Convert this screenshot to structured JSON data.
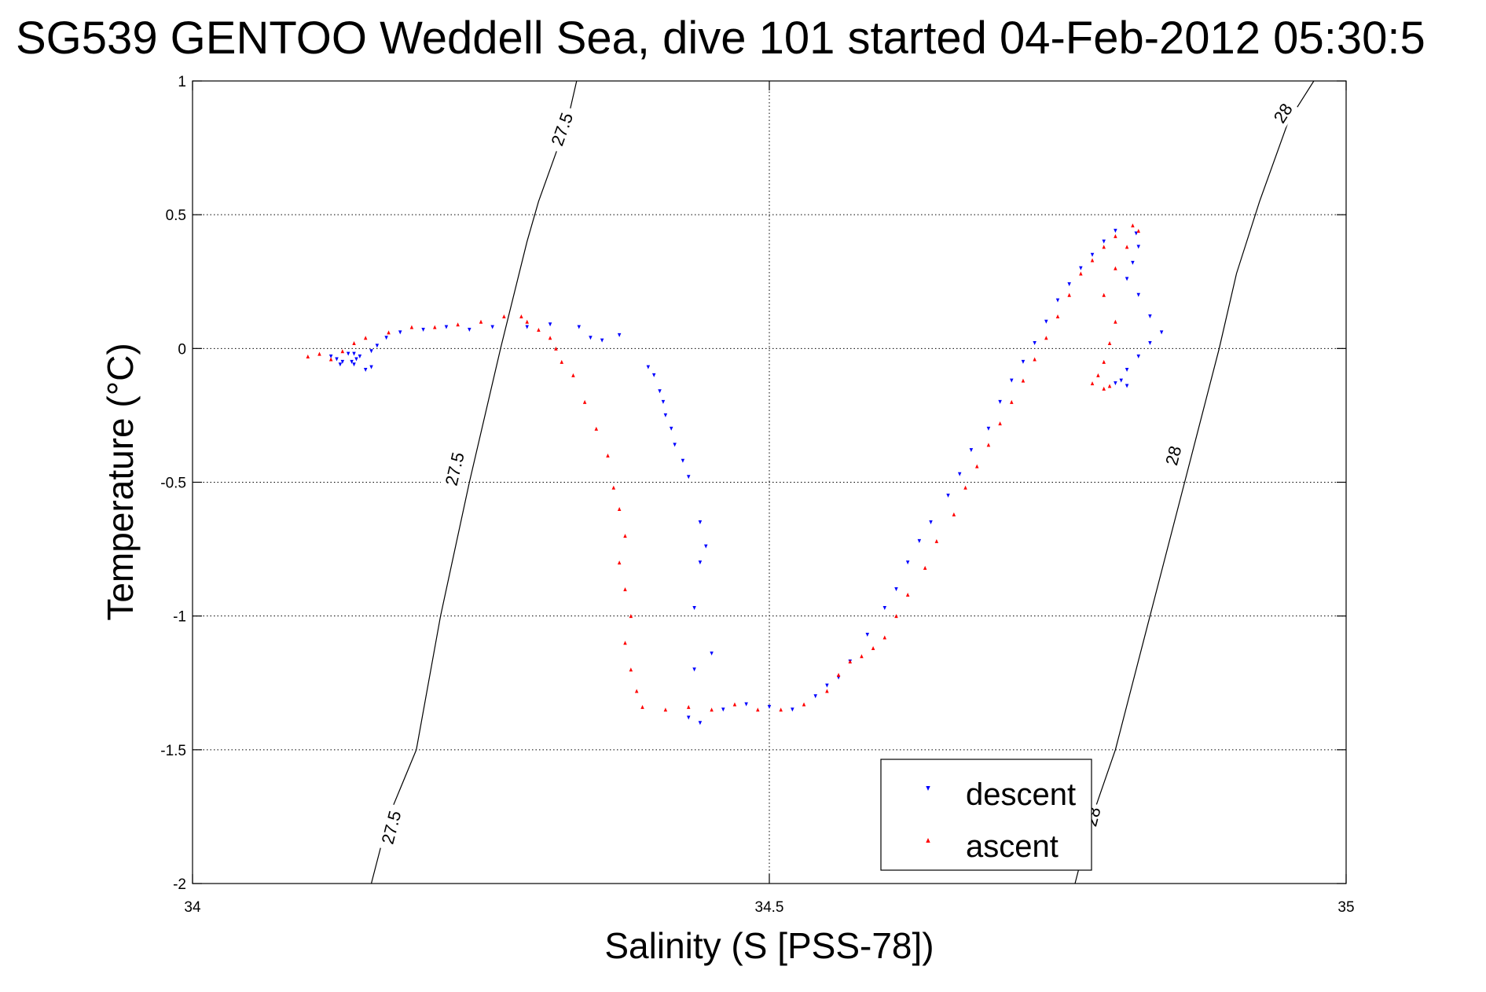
{
  "chart_data": {
    "type": "scatter",
    "title": "SG539 GENTOO Weddell Sea, dive 101 started 04-Feb-2012 05:30:5",
    "xlabel": "Salinity (S [PSS-78])",
    "ylabel": "Temperature (°C)",
    "xlim": [
      34,
      35
    ],
    "ylim": [
      -2,
      1
    ],
    "x_ticks": [
      "34",
      "34.5",
      "35"
    ],
    "y_ticks": [
      "-2",
      "-1.5",
      "-1",
      "-0.5",
      "0",
      "0.5",
      "1"
    ],
    "x_tick_values": [
      34,
      34.5,
      35
    ],
    "y_tick_values": [
      -2,
      -1.5,
      -1,
      -0.5,
      0,
      0.5,
      1
    ],
    "grid": true,
    "legend_position": "bottom-right",
    "density_contours": [
      {
        "label": "27.5",
        "points": [
          [
            34.155,
            -2.0
          ],
          [
            34.17,
            -1.75
          ],
          [
            34.194,
            -1.5
          ],
          [
            34.215,
            -1.0
          ],
          [
            34.24,
            -0.5
          ],
          [
            34.267,
            0.0
          ],
          [
            34.29,
            0.4
          ],
          [
            34.3,
            0.55
          ],
          [
            34.325,
            0.85
          ],
          [
            34.333,
            1.0
          ]
        ],
        "label_positions": [
          [
            34.172,
            -1.79
          ],
          [
            34.227,
            -0.45
          ],
          [
            34.32,
            0.82
          ]
        ]
      },
      {
        "label": "28",
        "points": [
          [
            34.765,
            -2.0
          ],
          [
            34.78,
            -1.75
          ],
          [
            34.8,
            -1.5
          ],
          [
            34.83,
            -1.0
          ],
          [
            34.86,
            -0.5
          ],
          [
            34.89,
            0.0
          ],
          [
            34.905,
            0.28
          ],
          [
            34.925,
            0.55
          ],
          [
            34.95,
            0.85
          ],
          [
            34.972,
            1.0
          ]
        ],
        "label_positions": [
          [
            34.78,
            -1.75
          ],
          [
            34.85,
            -0.4
          ],
          [
            34.945,
            0.88
          ]
        ]
      }
    ],
    "series": [
      {
        "name": "descent",
        "color": "#0000ff",
        "marker": "triangle-down",
        "points": [
          [
            34.12,
            -0.03
          ],
          [
            34.125,
            -0.04
          ],
          [
            34.13,
            -0.05
          ],
          [
            34.135,
            -0.02
          ],
          [
            34.14,
            -0.06
          ],
          [
            34.15,
            -0.08
          ],
          [
            34.142,
            -0.04
          ],
          [
            34.155,
            -0.07
          ],
          [
            34.14,
            -0.02
          ],
          [
            34.138,
            -0.05
          ],
          [
            34.145,
            -0.03
          ],
          [
            34.128,
            -0.06
          ],
          [
            34.155,
            -0.01
          ],
          [
            34.16,
            0.01
          ],
          [
            34.168,
            0.04
          ],
          [
            34.18,
            0.06
          ],
          [
            34.2,
            0.07
          ],
          [
            34.22,
            0.08
          ],
          [
            34.24,
            0.07
          ],
          [
            34.26,
            0.08
          ],
          [
            34.29,
            0.08
          ],
          [
            34.31,
            0.09
          ],
          [
            34.335,
            0.08
          ],
          [
            34.345,
            0.04
          ],
          [
            34.355,
            0.03
          ],
          [
            34.37,
            0.05
          ],
          [
            34.395,
            -0.07
          ],
          [
            34.4,
            -0.1
          ],
          [
            34.405,
            -0.16
          ],
          [
            34.408,
            -0.2
          ],
          [
            34.41,
            -0.25
          ],
          [
            34.415,
            -0.3
          ],
          [
            34.418,
            -0.36
          ],
          [
            34.425,
            -0.42
          ],
          [
            34.43,
            -0.48
          ],
          [
            34.44,
            -0.65
          ],
          [
            34.445,
            -0.74
          ],
          [
            34.44,
            -0.8
          ],
          [
            34.435,
            -0.97
          ],
          [
            34.45,
            -1.14
          ],
          [
            34.435,
            -1.2
          ],
          [
            34.43,
            -1.38
          ],
          [
            34.44,
            -1.4
          ],
          [
            34.46,
            -1.35
          ],
          [
            34.48,
            -1.33
          ],
          [
            34.5,
            -1.34
          ],
          [
            34.52,
            -1.35
          ],
          [
            34.54,
            -1.3
          ],
          [
            34.55,
            -1.26
          ],
          [
            34.56,
            -1.23
          ],
          [
            34.57,
            -1.17
          ],
          [
            34.585,
            -1.07
          ],
          [
            34.6,
            -0.97
          ],
          [
            34.61,
            -0.9
          ],
          [
            34.62,
            -0.8
          ],
          [
            34.63,
            -0.72
          ],
          [
            34.64,
            -0.65
          ],
          [
            34.655,
            -0.55
          ],
          [
            34.665,
            -0.47
          ],
          [
            34.675,
            -0.38
          ],
          [
            34.69,
            -0.3
          ],
          [
            34.7,
            -0.2
          ],
          [
            34.71,
            -0.12
          ],
          [
            34.72,
            -0.05
          ],
          [
            34.73,
            0.02
          ],
          [
            34.74,
            0.1
          ],
          [
            34.75,
            0.18
          ],
          [
            34.76,
            0.24
          ],
          [
            34.77,
            0.3
          ],
          [
            34.78,
            0.35
          ],
          [
            34.79,
            0.4
          ],
          [
            34.8,
            0.44
          ],
          [
            34.818,
            0.43
          ],
          [
            34.82,
            0.38
          ],
          [
            34.815,
            0.32
          ],
          [
            34.81,
            0.26
          ],
          [
            34.82,
            0.2
          ],
          [
            34.83,
            0.12
          ],
          [
            34.84,
            0.06
          ],
          [
            34.83,
            0.02
          ],
          [
            34.82,
            -0.03
          ],
          [
            34.81,
            -0.08
          ],
          [
            34.805,
            -0.12
          ],
          [
            34.81,
            -0.14
          ],
          [
            34.8,
            -0.13
          ]
        ]
      },
      {
        "name": "ascent",
        "color": "#ff0000",
        "marker": "triangle-up",
        "points": [
          [
            34.1,
            -0.03
          ],
          [
            34.11,
            -0.02
          ],
          [
            34.12,
            -0.04
          ],
          [
            34.13,
            -0.01
          ],
          [
            34.14,
            0.02
          ],
          [
            34.15,
            0.04
          ],
          [
            34.17,
            0.06
          ],
          [
            34.19,
            0.08
          ],
          [
            34.21,
            0.08
          ],
          [
            34.23,
            0.09
          ],
          [
            34.25,
            0.1
          ],
          [
            34.27,
            0.12
          ],
          [
            34.285,
            0.12
          ],
          [
            34.29,
            0.1
          ],
          [
            34.3,
            0.07
          ],
          [
            34.31,
            0.04
          ],
          [
            34.315,
            0.0
          ],
          [
            34.32,
            -0.05
          ],
          [
            34.33,
            -0.1
          ],
          [
            34.34,
            -0.2
          ],
          [
            34.35,
            -0.3
          ],
          [
            34.36,
            -0.4
          ],
          [
            34.365,
            -0.52
          ],
          [
            34.37,
            -0.6
          ],
          [
            34.375,
            -0.7
          ],
          [
            34.37,
            -0.8
          ],
          [
            34.375,
            -0.9
          ],
          [
            34.38,
            -1.0
          ],
          [
            34.375,
            -1.1
          ],
          [
            34.38,
            -1.2
          ],
          [
            34.385,
            -1.28
          ],
          [
            34.39,
            -1.34
          ],
          [
            34.41,
            -1.35
          ],
          [
            34.43,
            -1.34
          ],
          [
            34.45,
            -1.35
          ],
          [
            34.47,
            -1.33
          ],
          [
            34.49,
            -1.35
          ],
          [
            34.51,
            -1.35
          ],
          [
            34.53,
            -1.33
          ],
          [
            34.55,
            -1.28
          ],
          [
            34.56,
            -1.22
          ],
          [
            34.57,
            -1.17
          ],
          [
            34.58,
            -1.15
          ],
          [
            34.59,
            -1.12
          ],
          [
            34.6,
            -1.08
          ],
          [
            34.61,
            -1.0
          ],
          [
            34.62,
            -0.92
          ],
          [
            34.635,
            -0.82
          ],
          [
            34.645,
            -0.72
          ],
          [
            34.66,
            -0.62
          ],
          [
            34.67,
            -0.52
          ],
          [
            34.68,
            -0.44
          ],
          [
            34.69,
            -0.36
          ],
          [
            34.7,
            -0.28
          ],
          [
            34.71,
            -0.2
          ],
          [
            34.72,
            -0.12
          ],
          [
            34.73,
            -0.04
          ],
          [
            34.74,
            0.04
          ],
          [
            34.75,
            0.12
          ],
          [
            34.76,
            0.2
          ],
          [
            34.77,
            0.28
          ],
          [
            34.78,
            0.33
          ],
          [
            34.79,
            0.38
          ],
          [
            34.8,
            0.42
          ],
          [
            34.815,
            0.46
          ],
          [
            34.82,
            0.44
          ],
          [
            34.81,
            0.38
          ],
          [
            34.8,
            0.3
          ],
          [
            34.79,
            0.2
          ],
          [
            34.8,
            0.1
          ],
          [
            34.795,
            0.02
          ],
          [
            34.79,
            -0.05
          ],
          [
            34.785,
            -0.1
          ],
          [
            34.78,
            -0.13
          ],
          [
            34.79,
            -0.15
          ],
          [
            34.795,
            -0.14
          ]
        ]
      }
    ]
  }
}
